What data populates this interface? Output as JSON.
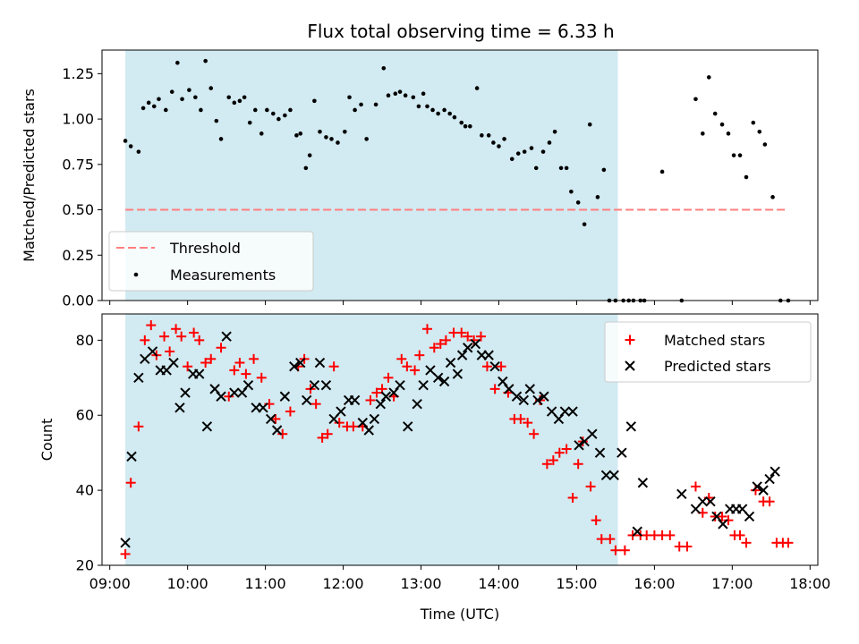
{
  "figure": {
    "title": "Flux total observing time = 6.33 h"
  },
  "colors": {
    "band": "#add8e6",
    "threshold": "#ff7f7f",
    "matched": "#ff0000",
    "predicted": "#000000",
    "measurement": "#000000"
  },
  "chart_data": [
    {
      "type": "scatter",
      "title": "",
      "ylabel": "Matched/Predicted stars",
      "xlabel": "",
      "xlim": [
        8.9,
        18.1
      ],
      "ylim": [
        0,
        1.38
      ],
      "yticks": [
        "0.00",
        "0.25",
        "0.50",
        "0.75",
        "1.00",
        "1.25"
      ],
      "ytick_values": [
        0,
        0.25,
        0.5,
        0.75,
        1.0,
        1.25
      ],
      "shaded_span": {
        "x_start": 9.2,
        "x_end": 15.53
      },
      "threshold": {
        "name": "Threshold",
        "y": 0.5,
        "x_start": 9.2,
        "x_end": 17.7
      },
      "legend": {
        "position": "lower-left",
        "entries": [
          "Threshold",
          "Measurements"
        ]
      },
      "series": [
        {
          "name": "Measurements",
          "x": [
            9.2,
            9.27,
            9.37,
            9.43,
            9.5,
            9.57,
            9.63,
            9.72,
            9.8,
            9.87,
            9.93,
            10.02,
            10.1,
            10.17,
            10.23,
            10.3,
            10.37,
            10.43,
            10.53,
            10.6,
            10.67,
            10.73,
            10.8,
            10.87,
            10.95,
            11.02,
            11.1,
            11.17,
            11.25,
            11.32,
            11.4,
            11.45,
            11.52,
            11.57,
            11.63,
            11.7,
            11.78,
            11.85,
            11.93,
            12.02,
            12.08,
            12.15,
            12.23,
            12.3,
            12.42,
            12.52,
            12.58,
            12.67,
            12.73,
            12.8,
            12.9,
            12.97,
            13.03,
            13.08,
            13.15,
            13.22,
            13.3,
            13.37,
            13.43,
            13.52,
            13.57,
            13.63,
            13.72,
            13.78,
            13.87,
            13.93,
            14.0,
            14.07,
            14.17,
            14.25,
            14.33,
            14.42,
            14.48,
            14.57,
            14.65,
            14.72,
            14.8,
            14.87,
            14.93,
            15.02,
            15.1,
            15.17,
            15.27,
            15.35,
            15.42,
            15.5,
            15.6,
            15.67,
            15.73,
            15.82,
            15.87,
            16.1,
            16.35,
            16.53,
            16.62,
            16.7,
            16.78,
            16.87,
            16.95,
            17.02,
            17.1,
            17.18,
            17.27,
            17.35,
            17.42,
            17.52,
            17.62,
            17.72
          ],
          "y": [
            0.88,
            0.85,
            0.82,
            1.06,
            1.09,
            1.07,
            1.11,
            1.05,
            1.15,
            1.31,
            1.11,
            1.16,
            1.12,
            1.05,
            1.32,
            1.17,
            0.99,
            0.89,
            1.12,
            1.09,
            1.1,
            1.12,
            0.98,
            1.05,
            0.92,
            1.05,
            1.03,
            1.0,
            1.02,
            1.05,
            0.91,
            0.92,
            0.73,
            0.8,
            1.1,
            0.93,
            0.9,
            0.89,
            0.87,
            0.93,
            1.12,
            1.05,
            1.08,
            0.89,
            1.08,
            1.28,
            1.13,
            1.14,
            1.15,
            1.13,
            1.12,
            1.07,
            1.14,
            1.07,
            1.05,
            1.03,
            1.05,
            1.03,
            1.01,
            0.98,
            0.96,
            0.96,
            1.17,
            0.91,
            0.91,
            0.87,
            0.85,
            0.89,
            0.78,
            0.81,
            0.82,
            0.84,
            0.73,
            0.82,
            0.87,
            0.93,
            0.73,
            0.73,
            0.6,
            0.54,
            0.42,
            0.97,
            0.57,
            0.72,
            0.0,
            0.0,
            0.0,
            0.0,
            0.0,
            0.0,
            0.0,
            0.71,
            0.0,
            1.11,
            0.92,
            1.23,
            1.03,
            0.97,
            0.92,
            0.8,
            0.8,
            0.68,
            0.98,
            0.93,
            0.86,
            0.57,
            0.0,
            0.0
          ]
        }
      ]
    },
    {
      "type": "scatter",
      "title": "",
      "xlabel": "Time (UTC)",
      "ylabel": "Count",
      "xlim": [
        8.9,
        18.1
      ],
      "ylim": [
        20,
        87
      ],
      "xticks": [
        "09:00",
        "10:00",
        "11:00",
        "12:00",
        "13:00",
        "14:00",
        "15:00",
        "16:00",
        "17:00",
        "18:00"
      ],
      "xtick_values": [
        9,
        10,
        11,
        12,
        13,
        14,
        15,
        16,
        17,
        18
      ],
      "yticks": [
        "20",
        "40",
        "60",
        "80"
      ],
      "ytick_values": [
        20,
        40,
        60,
        80
      ],
      "shaded_span": {
        "x_start": 9.2,
        "x_end": 15.53
      },
      "legend": {
        "position": "upper-right",
        "entries": [
          "Matched stars",
          "Predicted stars"
        ]
      },
      "series": [
        {
          "name": "Matched stars",
          "marker": "plus",
          "x": [
            9.2,
            9.27,
            9.37,
            9.45,
            9.53,
            9.6,
            9.7,
            9.77,
            9.85,
            9.92,
            10.0,
            10.08,
            10.15,
            10.23,
            10.3,
            10.43,
            10.53,
            10.6,
            10.67,
            10.75,
            10.85,
            10.95,
            11.05,
            11.13,
            11.22,
            11.32,
            11.42,
            11.5,
            11.58,
            11.65,
            11.73,
            11.8,
            11.88,
            11.95,
            12.05,
            12.13,
            12.25,
            12.35,
            12.43,
            12.5,
            12.58,
            12.65,
            12.75,
            12.82,
            12.92,
            12.98,
            13.08,
            13.17,
            13.25,
            13.32,
            13.42,
            13.52,
            13.6,
            13.68,
            13.77,
            13.85,
            13.95,
            14.03,
            14.12,
            14.2,
            14.28,
            14.37,
            14.45,
            14.53,
            14.62,
            14.7,
            14.78,
            14.87,
            14.95,
            15.02,
            15.08,
            15.18,
            15.25,
            15.32,
            15.43,
            15.5,
            15.62,
            15.72,
            15.82,
            15.9,
            16.0,
            16.1,
            16.2,
            16.32,
            16.42,
            16.53,
            16.62,
            16.7,
            16.78,
            16.87,
            16.95,
            17.03,
            17.1,
            17.18,
            17.3,
            17.4,
            17.48,
            17.57,
            17.65,
            17.72
          ],
          "y": [
            23,
            42,
            57,
            80,
            84,
            76,
            81,
            77,
            83,
            81,
            73,
            82,
            80,
            74,
            75,
            78,
            65,
            72,
            74,
            71,
            75,
            70,
            63,
            59,
            55,
            61,
            73,
            75,
            67,
            63,
            54,
            55,
            73,
            58,
            57,
            57,
            57,
            64,
            66,
            67,
            70,
            65,
            75,
            73,
            72,
            76,
            83,
            78,
            79,
            80,
            82,
            82,
            81,
            80,
            81,
            73,
            67,
            73,
            66,
            59,
            59,
            58,
            55,
            64,
            47,
            48,
            50,
            51,
            38,
            47,
            53,
            41,
            32,
            27,
            27,
            24,
            24,
            28,
            28,
            28,
            28,
            28,
            28,
            25,
            25,
            41,
            34,
            38,
            33,
            33,
            32,
            28,
            28,
            26,
            40,
            37,
            37,
            26,
            26,
            26
          ]
        },
        {
          "name": "Predicted stars",
          "marker": "x",
          "x": [
            9.2,
            9.28,
            9.37,
            9.45,
            9.55,
            9.65,
            9.73,
            9.82,
            9.9,
            9.97,
            10.07,
            10.15,
            10.25,
            10.35,
            10.43,
            10.5,
            10.6,
            10.7,
            10.78,
            10.88,
            10.97,
            11.07,
            11.15,
            11.25,
            11.37,
            11.45,
            11.53,
            11.63,
            11.7,
            11.78,
            11.88,
            11.97,
            12.07,
            12.15,
            12.25,
            12.33,
            12.4,
            12.48,
            12.55,
            12.65,
            12.73,
            12.83,
            12.95,
            13.03,
            13.12,
            13.22,
            13.3,
            13.38,
            13.47,
            13.53,
            13.6,
            13.7,
            13.78,
            13.87,
            13.95,
            14.05,
            14.13,
            14.23,
            14.32,
            14.4,
            14.5,
            14.58,
            14.68,
            14.77,
            14.85,
            14.95,
            15.03,
            15.1,
            15.2,
            15.3,
            15.38,
            15.48,
            15.58,
            15.7,
            15.78,
            15.85,
            16.35,
            16.53,
            16.62,
            16.72,
            16.8,
            16.88,
            16.97,
            17.05,
            17.13,
            17.22,
            17.32,
            17.4,
            17.48,
            17.55
          ],
          "y": [
            26,
            49,
            70,
            75,
            77,
            72,
            72,
            74,
            62,
            66,
            71,
            71,
            57,
            67,
            65,
            81,
            66,
            66,
            68,
            62,
            62,
            59,
            56,
            65,
            73,
            74,
            64,
            68,
            74,
            68,
            59,
            61,
            64,
            64,
            58,
            56,
            59,
            63,
            65,
            66,
            68,
            57,
            63,
            68,
            72,
            70,
            69,
            74,
            71,
            76,
            78,
            79,
            76,
            76,
            73,
            69,
            67,
            65,
            64,
            67,
            64,
            65,
            61,
            59,
            61,
            61,
            52,
            53,
            55,
            50,
            44,
            44,
            50,
            57,
            29,
            42,
            39,
            35,
            37,
            37,
            33,
            31,
            35,
            35,
            35,
            33,
            41,
            40,
            43,
            45
          ]
        }
      ]
    }
  ]
}
